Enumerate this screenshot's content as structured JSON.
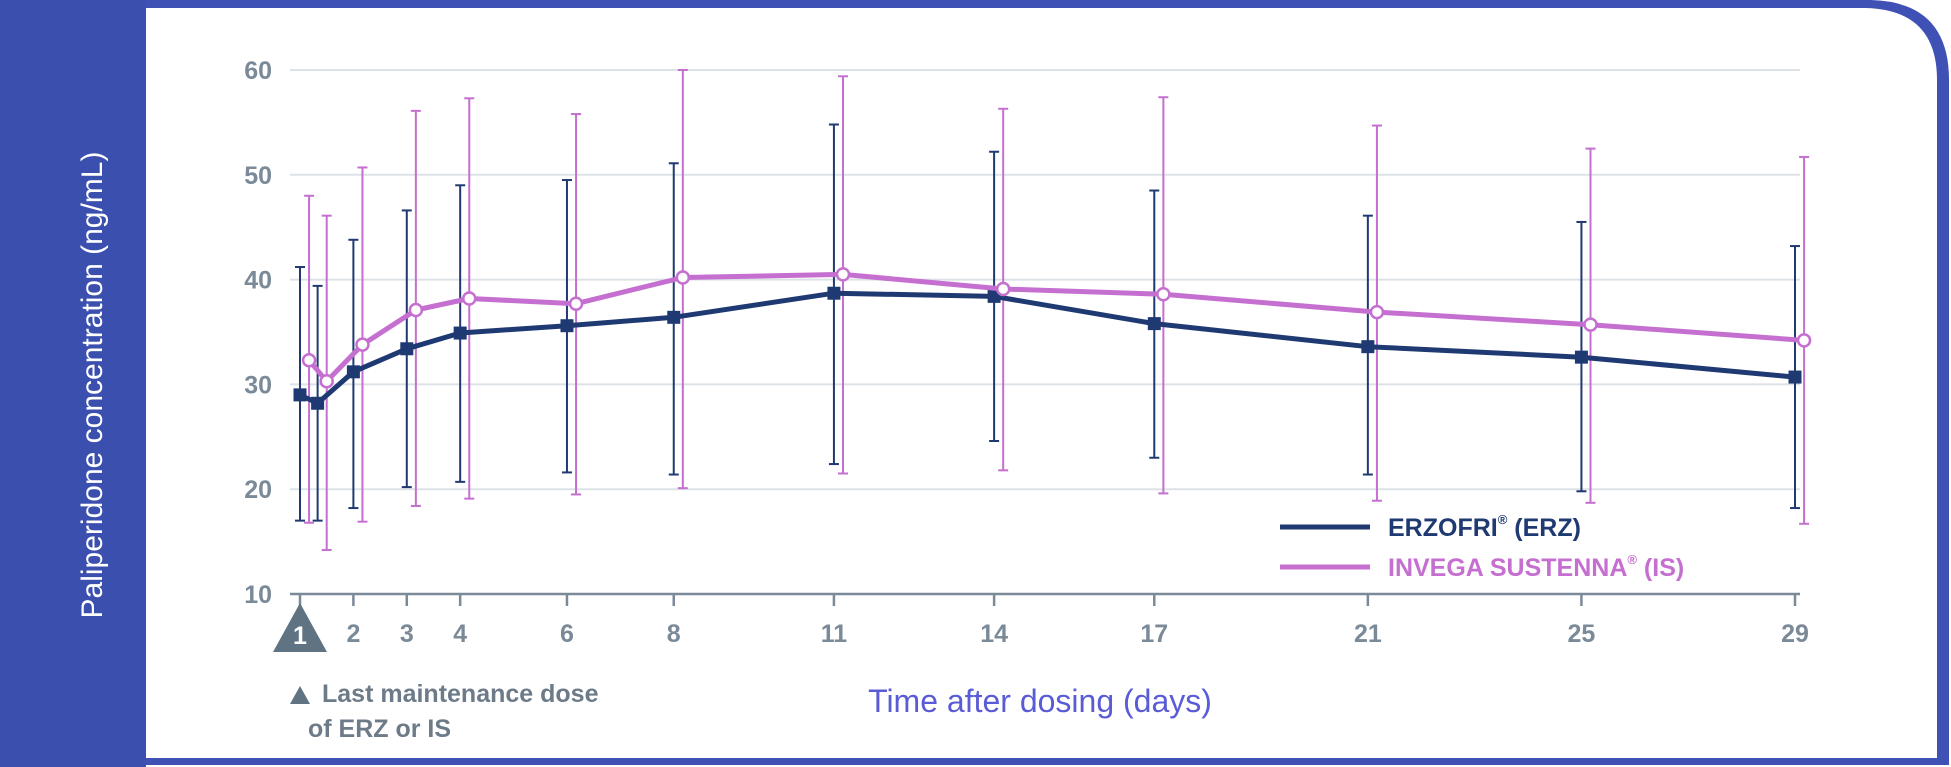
{
  "chart_data": {
    "type": "line",
    "title": "",
    "xlabel": "Time after dosing (days)",
    "ylabel": "Paliperidone concentration (ng/mL)",
    "ylim": [
      10,
      60
    ],
    "yticks": [
      "10",
      "20",
      "30",
      "40",
      "50",
      "60"
    ],
    "xticks": [
      "1",
      "2",
      "3",
      "4",
      "6",
      "8",
      "11",
      "14",
      "17",
      "21",
      "25",
      "29"
    ],
    "grid": true,
    "legend_placement": "bottom-right",
    "colors": {
      "ERZ": "#1f3a72",
      "IS": "#c56fd0",
      "frame": "#3a4fae",
      "grid": "#dde2e7",
      "axis": "#7b8a98"
    },
    "series": [
      {
        "name": "ERZOFRI® (ERZ)",
        "legend_main": "ERZOFRI",
        "legend_mark": "®",
        "legend_suffix": " (ERZ)",
        "marker": "square",
        "x": [
          1,
          1.33,
          2,
          3,
          4,
          6,
          8,
          11,
          14,
          17,
          21,
          25,
          29
        ],
        "y": [
          29.0,
          28.2,
          31.2,
          33.4,
          34.9,
          35.6,
          36.4,
          38.7,
          38.4,
          35.8,
          33.6,
          32.6,
          30.7
        ],
        "ylow": [
          17.0,
          17.0,
          18.2,
          20.2,
          20.7,
          21.6,
          21.4,
          22.4,
          24.6,
          23.0,
          21.4,
          19.8,
          18.2
        ],
        "yhigh": [
          41.2,
          39.4,
          43.8,
          46.6,
          49.0,
          49.5,
          51.1,
          54.8,
          52.2,
          48.5,
          46.1,
          45.5,
          43.2
        ]
      },
      {
        "name": "INVEGA SUSTENNA® (IS)",
        "legend_main": "INVEGA SUSTENNA",
        "legend_mark": "®",
        "legend_suffix": " (IS)",
        "marker": "circle",
        "x": [
          1.17,
          1.5,
          2.17,
          3.17,
          4.17,
          6.17,
          8.17,
          11.17,
          14.17,
          17.17,
          21.17,
          25.17,
          29.17
        ],
        "y": [
          32.3,
          30.3,
          33.8,
          37.1,
          38.2,
          37.7,
          40.2,
          40.5,
          39.1,
          38.6,
          36.9,
          35.7,
          34.2
        ],
        "ylow": [
          16.8,
          14.2,
          16.9,
          18.4,
          19.1,
          19.5,
          20.1,
          21.5,
          21.8,
          19.6,
          18.9,
          18.7,
          16.7
        ],
        "yhigh": [
          48.0,
          46.1,
          50.7,
          56.1,
          57.3,
          55.8,
          60.0,
          59.4,
          56.3,
          57.4,
          54.7,
          52.5,
          51.7
        ]
      }
    ],
    "annotation": {
      "marker_label": "1",
      "lines": [
        "Last maintenance dose",
        "of ERZ or IS"
      ]
    }
  }
}
